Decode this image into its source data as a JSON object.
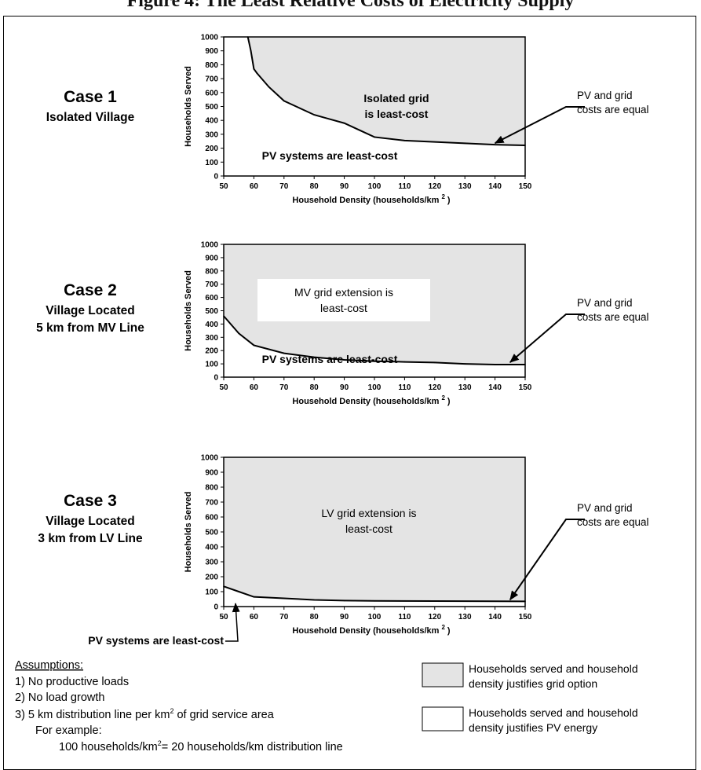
{
  "page": {
    "title": "Figure 4: The Least Relative Costs of Electricity Supply",
    "colors": {
      "grid_fill": "#e4e4e4",
      "pv_fill": "#ffffff",
      "line": "#000000"
    }
  },
  "chart_data": [
    {
      "type": "area",
      "case_title": "Case 1",
      "case_subtitle": [
        "Isolated Village"
      ],
      "x": [
        58,
        59,
        60,
        61,
        63,
        65,
        70,
        75,
        80,
        85,
        90,
        95,
        100,
        110,
        120,
        130,
        140,
        150
      ],
      "y": [
        1000,
        900,
        770,
        740,
        690,
        640,
        540,
        490,
        440,
        410,
        380,
        330,
        280,
        255,
        245,
        235,
        225,
        220
      ],
      "xlim": [
        50,
        150
      ],
      "ylim": [
        0,
        1000
      ],
      "xticks": [
        "50",
        "60",
        "70",
        "80",
        "90",
        "100",
        "110",
        "120",
        "130",
        "140",
        "150"
      ],
      "yticks": [
        "0",
        "100",
        "200",
        "300",
        "400",
        "500",
        "600",
        "700",
        "800",
        "900",
        "1000"
      ],
      "xlabel": "Household Density (households/km",
      "xlabel_sup": "2",
      "xlabel_close": ")",
      "ylabel": "Households Served",
      "region_grid_label": [
        "Isolated grid",
        "is least-cost"
      ],
      "region_pv_label": [
        "PV systems are least-cost"
      ],
      "annotation": [
        "PV and grid",
        "costs are equal"
      ],
      "annotation_target": [
        140,
        225
      ]
    },
    {
      "type": "area",
      "case_title": "Case 2",
      "case_subtitle": [
        "Village Located",
        "5 km from MV Line"
      ],
      "x": [
        50,
        55,
        60,
        70,
        80,
        90,
        100,
        110,
        120,
        130,
        140,
        150
      ],
      "y": [
        460,
        330,
        240,
        180,
        150,
        130,
        120,
        115,
        110,
        100,
        95,
        95
      ],
      "xlim": [
        50,
        150
      ],
      "ylim": [
        0,
        1000
      ],
      "xticks": [
        "50",
        "60",
        "70",
        "80",
        "90",
        "100",
        "110",
        "120",
        "130",
        "140",
        "150"
      ],
      "yticks": [
        "0",
        "100",
        "200",
        "300",
        "400",
        "500",
        "600",
        "700",
        "800",
        "900",
        "1000"
      ],
      "xlabel": "Household Density (households/km",
      "xlabel_sup": "2",
      "xlabel_close": ")",
      "ylabel": "Households Served",
      "region_grid_label": [
        "MV grid extension is",
        "least-cost"
      ],
      "region_pv_label": [
        "PV systems are least-cost"
      ],
      "annotation": [
        "PV and grid",
        "costs are equal"
      ],
      "annotation_target": [
        145,
        100
      ]
    },
    {
      "type": "area",
      "case_title": "Case 3",
      "case_subtitle": [
        "Village Located",
        "3 km from LV Line"
      ],
      "x": [
        50,
        55,
        60,
        70,
        80,
        90,
        100,
        120,
        150
      ],
      "y": [
        135,
        100,
        65,
        55,
        45,
        40,
        38,
        37,
        35
      ],
      "xlim": [
        50,
        150
      ],
      "ylim": [
        0,
        1000
      ],
      "xticks": [
        "50",
        "60",
        "70",
        "80",
        "90",
        "100",
        "110",
        "120",
        "130",
        "140",
        "150"
      ],
      "yticks": [
        "0",
        "100",
        "200",
        "300",
        "400",
        "500",
        "600",
        "700",
        "800",
        "900",
        "1000"
      ],
      "xlabel": "Household Density (households/km",
      "xlabel_sup": "2",
      "xlabel_close": ")",
      "ylabel": "Households Served",
      "region_grid_label": [
        "LV grid extension is",
        "least-cost"
      ],
      "region_pv_label": [
        "PV systems are least-cost"
      ],
      "annotation": [
        "PV and grid",
        "costs are equal"
      ],
      "annotation_target": [
        145,
        35
      ]
    }
  ],
  "legend": [
    {
      "label": [
        "Households served and household",
        "density justifies grid option"
      ],
      "fill": "#e4e4e4"
    },
    {
      "label": [
        "Households served and household",
        "density justifies PV energy"
      ],
      "fill": "#ffffff"
    }
  ],
  "assumptions": {
    "heading": "Assumptions:",
    "items": [
      "1) No productive loads",
      "2) No load growth",
      "3) 5 km distribution line per km",
      "For example:",
      "100 households/km",
      "= 20 households/km distribution line"
    ],
    "item3_sup": "2",
    "item3_rest": " of grid service area",
    "example_sup": "2"
  }
}
